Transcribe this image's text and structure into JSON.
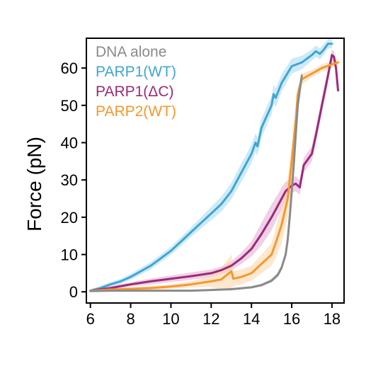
{
  "chart_data": {
    "type": "line",
    "title": "",
    "xlabel": "",
    "ylabel": "Force (pN)",
    "xlim": [
      5.8,
      18.6
    ],
    "ylim": [
      -3,
      68
    ],
    "xticks": [
      6,
      8,
      10,
      12,
      14,
      16,
      18
    ],
    "yticks": [
      0,
      10,
      20,
      30,
      40,
      50,
      60
    ],
    "legend_position": "top-left",
    "grid": false,
    "series": [
      {
        "name": "DNA alone",
        "color": "#8a8a8a",
        "band_color": "#bdbdbd",
        "x": [
          6.0,
          7.0,
          8.0,
          9.0,
          10.0,
          11.0,
          12.0,
          13.0,
          14.0,
          14.5,
          15.0,
          15.3,
          15.5,
          15.7,
          15.8,
          15.9,
          16.0,
          16.1,
          16.2,
          16.3,
          16.5
        ],
        "y": [
          0.2,
          0.3,
          0.3,
          0.3,
          0.3,
          0.3,
          0.5,
          0.7,
          1.2,
          1.8,
          3.0,
          4.5,
          6.5,
          10.0,
          14.0,
          20.0,
          27.0,
          34.0,
          42.0,
          50.0,
          58.0
        ],
        "err": [
          0.2,
          0.2,
          0.2,
          0.2,
          0.2,
          0.2,
          0.2,
          0.3,
          0.3,
          0.4,
          0.5,
          0.6,
          0.8,
          1.0,
          1.2,
          1.5,
          1.5,
          1.5,
          1.5,
          1.5,
          1.5
        ]
      },
      {
        "name": "PARP1(WT)",
        "color": "#3ea6d4",
        "band_color": "#a6d9f0",
        "x": [
          6.0,
          6.5,
          7.0,
          7.5,
          8.0,
          8.5,
          9.0,
          9.5,
          10.0,
          10.5,
          11.0,
          11.5,
          12.0,
          12.5,
          13.0,
          13.5,
          14.0,
          14.2,
          14.3,
          14.5,
          15.0,
          15.1,
          15.2,
          15.5,
          16.0,
          16.5,
          17.0,
          17.2,
          17.4,
          17.6,
          17.8,
          18.0
        ],
        "y": [
          0.3,
          1.0,
          2.0,
          2.8,
          4.0,
          5.5,
          7.0,
          9.0,
          11.0,
          13.5,
          16.0,
          18.5,
          21.0,
          23.5,
          27.0,
          32.0,
          37.0,
          40.0,
          39.0,
          44.0,
          50.0,
          53.0,
          52.0,
          56.0,
          60.5,
          61.5,
          63.5,
          64.5,
          63.8,
          65.0,
          66.5,
          66.5
        ],
        "err": [
          0.4,
          0.6,
          0.6,
          0.7,
          0.8,
          0.9,
          1.0,
          1.0,
          1.1,
          1.2,
          1.3,
          1.5,
          1.8,
          2.0,
          2.2,
          2.5,
          2.5,
          2.5,
          2.5,
          2.5,
          2.5,
          2.5,
          2.5,
          2.3,
          2.0,
          1.8,
          1.5,
          1.5,
          1.5,
          1.5,
          1.2,
          1.2
        ]
      },
      {
        "name": "PARP1(ΔC)",
        "color": "#9b2a7b",
        "band_color": "#e3a9cf",
        "x": [
          6.0,
          7.0,
          8.0,
          9.0,
          10.0,
          11.0,
          12.0,
          12.5,
          13.0,
          13.5,
          14.0,
          14.5,
          15.0,
          15.3,
          15.5,
          15.7,
          16.0,
          16.2,
          16.4,
          16.6,
          17.0,
          17.2,
          17.5,
          17.8,
          18.0,
          18.1,
          18.2,
          18.3
        ],
        "y": [
          0.3,
          1.0,
          2.0,
          2.8,
          3.5,
          4.2,
          5.0,
          5.8,
          7.0,
          9.0,
          11.5,
          15.5,
          20.0,
          23.0,
          25.0,
          27.0,
          28.5,
          29.0,
          28.0,
          34.0,
          37.0,
          42.0,
          50.0,
          58.0,
          63.5,
          63.0,
          60.0,
          54.0
        ],
        "err": [
          0.3,
          0.5,
          0.6,
          0.8,
          0.9,
          1.0,
          1.0,
          1.0,
          1.2,
          1.5,
          2.0,
          3.0,
          3.5,
          3.0,
          3.0,
          2.5,
          2.0,
          2.0,
          2.0,
          2.0,
          2.0,
          2.0,
          2.0,
          2.0,
          1.5,
          1.5,
          1.5,
          1.5
        ]
      },
      {
        "name": "PARP2(WT)",
        "color": "#f7972b",
        "band_color": "#fbd3a6",
        "x": [
          6.0,
          7.0,
          8.0,
          9.0,
          10.0,
          11.0,
          12.0,
          12.5,
          13.0,
          13.1,
          13.5,
          14.0,
          14.5,
          15.0,
          15.2,
          15.5,
          15.8,
          15.9,
          16.0,
          16.2,
          16.3,
          16.5,
          17.0,
          17.5,
          18.0,
          18.3
        ],
        "y": [
          0.3,
          0.6,
          0.8,
          1.0,
          1.4,
          2.0,
          2.8,
          3.3,
          5.5,
          3.5,
          4.0,
          5.0,
          7.5,
          10.0,
          13.0,
          18.0,
          25.0,
          30.0,
          35.0,
          46.0,
          53.0,
          57.0,
          58.5,
          60.0,
          61.0,
          61.5
        ],
        "err": [
          0.3,
          0.4,
          0.4,
          0.5,
          0.6,
          0.8,
          1.5,
          3.0,
          4.5,
          2.0,
          2.0,
          2.0,
          2.5,
          3.0,
          4.0,
          5.0,
          5.0,
          5.0,
          4.0,
          3.0,
          2.0,
          1.5,
          1.0,
          1.0,
          1.0,
          1.0
        ]
      }
    ]
  }
}
